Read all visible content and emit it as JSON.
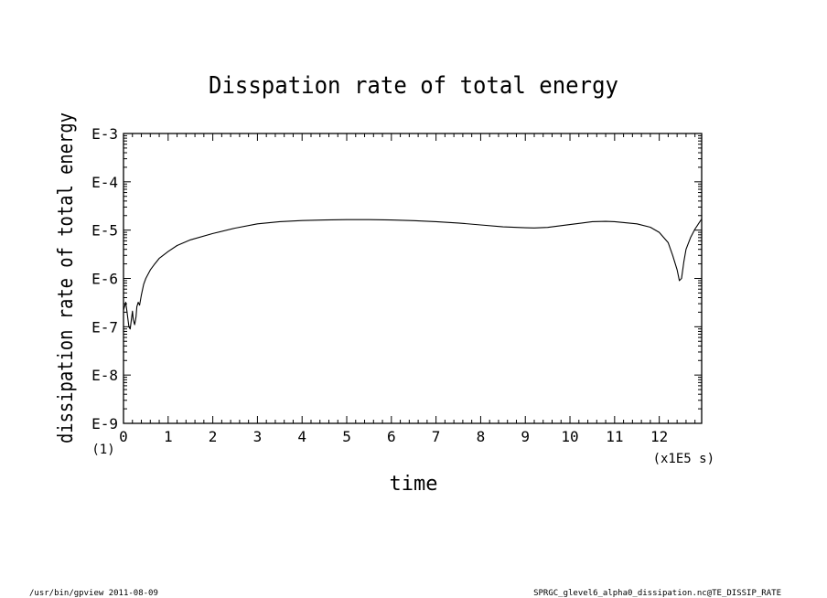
{
  "chart_data": {
    "type": "line",
    "title": "Disspation rate of total energy",
    "xlabel": "time",
    "ylabel": "dissipation rate of total energy",
    "x_unit_label": "(x1E5 s)",
    "x_extra_tick_label": "(1)",
    "xlim": [
      0,
      12.95
    ],
    "ylim_log10": [
      -9,
      -3
    ],
    "log_scale_y": true,
    "grid": false,
    "x_ticks": [
      0,
      1,
      2,
      3,
      4,
      5,
      6,
      7,
      8,
      9,
      10,
      11,
      12
    ],
    "x_tick_labels": [
      "0",
      "1",
      "2",
      "3",
      "4",
      "5",
      "6",
      "7",
      "8",
      "9",
      "10",
      "11",
      "12"
    ],
    "y_ticks_log10": [
      -3,
      -4,
      -5,
      -6,
      -7,
      -8,
      -9
    ],
    "y_tick_labels": [
      "E-3",
      "E-4",
      "E-5",
      "E-6",
      "E-7",
      "E-8",
      "E-9"
    ],
    "series": [
      {
        "x": [
          0.0,
          0.05,
          0.08,
          0.1,
          0.12,
          0.15,
          0.18,
          0.2,
          0.22,
          0.25,
          0.28,
          0.3,
          0.33,
          0.36,
          0.4,
          0.45,
          0.5,
          0.6,
          0.7,
          0.8,
          1.0,
          1.2,
          1.5,
          2.0,
          2.5,
          3.0,
          3.5,
          4.0,
          4.5,
          5.0,
          5.5,
          6.0,
          6.5,
          7.0,
          7.5,
          8.0,
          8.5,
          9.0,
          9.2,
          9.5,
          10.0,
          10.5,
          10.8,
          11.0,
          11.5,
          11.8,
          12.0,
          12.2,
          12.3,
          12.4,
          12.45,
          12.5,
          12.55,
          12.6,
          12.7,
          12.8,
          12.9,
          12.95
        ],
        "y": [
          2.2e-07,
          3.2e-07,
          2e-07,
          1.4e-07,
          1e-07,
          9e-08,
          1.5e-07,
          2.1e-07,
          1.4e-07,
          1.1e-07,
          1.6e-07,
          2.6e-07,
          3.2e-07,
          2.8e-07,
          4.5e-07,
          7.5e-07,
          1e-06,
          1.5e-06,
          2e-06,
          2.6e-06,
          3.6e-06,
          4.8e-06,
          6.3e-06,
          8.5e-06,
          1.1e-05,
          1.35e-05,
          1.5e-05,
          1.58e-05,
          1.62e-05,
          1.65e-05,
          1.65e-05,
          1.62e-05,
          1.57e-05,
          1.5e-05,
          1.4e-05,
          1.28e-05,
          1.17e-05,
          1.12e-05,
          1.11e-05,
          1.14e-05,
          1.3e-05,
          1.5e-05,
          1.52e-05,
          1.5e-05,
          1.35e-05,
          1.15e-05,
          9e-06,
          5.5e-06,
          3e-06,
          1.5e-06,
          9e-07,
          1e-06,
          2.2e-06,
          4e-06,
          7e-06,
          1.05e-05,
          1.45e-05,
          1.7e-05
        ]
      }
    ]
  },
  "footer": {
    "left_text": "/usr/bin/gpview  2011-08-09",
    "right_text": "SPRGC_glevel6_alpha0_dissipation.nc@TE_DISSIP_RATE"
  }
}
